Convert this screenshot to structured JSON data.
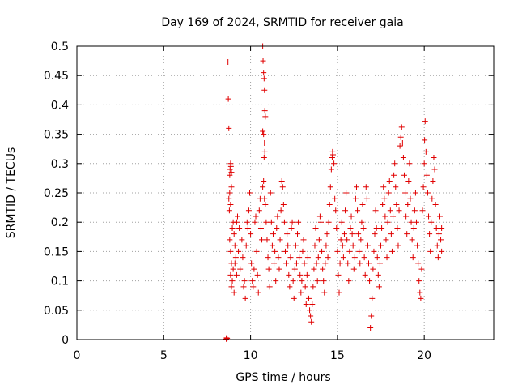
{
  "chart_data": {
    "type": "scatter",
    "title": "Day 169 of 2024, SRMTID for receiver gaia",
    "xlabel": "GPS time / hours",
    "ylabel": "SRMTID / TECUs",
    "xlim": [
      0,
      24
    ],
    "ylim": [
      0,
      0.5
    ],
    "xticks": [
      0,
      5,
      10,
      15,
      20
    ],
    "xtick_labels": [
      "0",
      "5",
      "10",
      "15",
      "20"
    ],
    "yticks": [
      0,
      0.05,
      0.1,
      0.15,
      0.2,
      0.25,
      0.3,
      0.35,
      0.4,
      0.45,
      0.5
    ],
    "ytick_labels": [
      "0",
      "0.05",
      "0.1",
      "0.15",
      "0.2",
      "0.25",
      "0.3",
      "0.35",
      "0.4",
      "0.45",
      "0.5"
    ],
    "grid": true,
    "marker": "+",
    "color": "#e00000",
    "series": [
      {
        "values": [
          [
            8.6,
            0.001
          ],
          [
            8.62,
            0.003
          ],
          [
            8.65,
            0.002
          ],
          [
            8.7,
            0.473
          ],
          [
            8.72,
            0.41
          ],
          [
            8.75,
            0.36
          ],
          [
            8.8,
            0.28
          ],
          [
            8.82,
            0.29
          ],
          [
            8.85,
            0.3
          ],
          [
            8.87,
            0.295
          ],
          [
            8.9,
            0.285
          ],
          [
            8.75,
            0.24
          ],
          [
            8.8,
            0.25
          ],
          [
            8.85,
            0.23
          ],
          [
            8.9,
            0.26
          ],
          [
            8.78,
            0.22
          ],
          [
            8.8,
            0.17
          ],
          [
            8.85,
            0.15
          ],
          [
            8.9,
            0.13
          ],
          [
            8.95,
            0.19
          ],
          [
            9.0,
            0.2
          ],
          [
            9.05,
            0.18
          ],
          [
            9.1,
            0.16
          ],
          [
            9.15,
            0.14
          ],
          [
            9.2,
            0.2
          ],
          [
            9.25,
            0.21
          ],
          [
            8.85,
            0.11
          ],
          [
            8.9,
            0.09
          ],
          [
            8.95,
            0.1
          ],
          [
            9.0,
            0.12
          ],
          [
            9.05,
            0.08
          ],
          [
            9.1,
            0.13
          ],
          [
            9.2,
            0.11
          ],
          [
            9.3,
            0.15
          ],
          [
            9.35,
            0.19
          ],
          [
            9.4,
            0.12
          ],
          [
            9.5,
            0.17
          ],
          [
            9.55,
            0.14
          ],
          [
            9.6,
            0.09
          ],
          [
            9.65,
            0.1
          ],
          [
            9.7,
            0.07
          ],
          [
            9.75,
            0.16
          ],
          [
            9.8,
            0.2
          ],
          [
            9.85,
            0.19
          ],
          [
            9.9,
            0.22
          ],
          [
            9.95,
            0.25
          ],
          [
            10.0,
            0.18
          ],
          [
            10.05,
            0.13
          ],
          [
            10.1,
            0.1
          ],
          [
            10.15,
            0.09
          ],
          [
            10.2,
            0.12
          ],
          [
            10.25,
            0.2
          ],
          [
            10.3,
            0.21
          ],
          [
            10.35,
            0.15
          ],
          [
            10.4,
            0.11
          ],
          [
            10.45,
            0.08
          ],
          [
            10.5,
            0.22
          ],
          [
            10.55,
            0.24
          ],
          [
            10.6,
            0.19
          ],
          [
            10.65,
            0.17
          ],
          [
            10.7,
            0.5
          ],
          [
            10.72,
            0.475
          ],
          [
            10.75,
            0.455
          ],
          [
            10.78,
            0.445
          ],
          [
            10.8,
            0.425
          ],
          [
            10.82,
            0.39
          ],
          [
            10.85,
            0.38
          ],
          [
            10.7,
            0.355
          ],
          [
            10.75,
            0.35
          ],
          [
            10.8,
            0.335
          ],
          [
            10.82,
            0.32
          ],
          [
            10.78,
            0.31
          ],
          [
            10.7,
            0.26
          ],
          [
            10.75,
            0.27
          ],
          [
            10.8,
            0.24
          ],
          [
            10.85,
            0.23
          ],
          [
            10.9,
            0.2
          ],
          [
            10.95,
            0.17
          ],
          [
            11.0,
            0.14
          ],
          [
            11.05,
            0.12
          ],
          [
            11.1,
            0.09
          ],
          [
            11.15,
            0.25
          ],
          [
            11.2,
            0.2
          ],
          [
            11.25,
            0.16
          ],
          [
            11.3,
            0.18
          ],
          [
            11.35,
            0.13
          ],
          [
            11.4,
            0.15
          ],
          [
            11.45,
            0.1
          ],
          [
            11.5,
            0.19
          ],
          [
            11.55,
            0.21
          ],
          [
            11.6,
            0.14
          ],
          [
            11.65,
            0.12
          ],
          [
            11.7,
            0.17
          ],
          [
            11.75,
            0.22
          ],
          [
            11.8,
            0.27
          ],
          [
            11.85,
            0.26
          ],
          [
            11.9,
            0.23
          ],
          [
            11.95,
            0.2
          ],
          [
            12.0,
            0.15
          ],
          [
            12.05,
            0.13
          ],
          [
            12.1,
            0.18
          ],
          [
            12.15,
            0.16
          ],
          [
            12.2,
            0.11
          ],
          [
            12.25,
            0.09
          ],
          [
            12.3,
            0.14
          ],
          [
            12.35,
            0.19
          ],
          [
            12.4,
            0.2
          ],
          [
            12.45,
            0.1
          ],
          [
            12.5,
            0.07
          ],
          [
            12.55,
            0.12
          ],
          [
            12.6,
            0.16
          ],
          [
            12.65,
            0.13
          ],
          [
            12.7,
            0.18
          ],
          [
            12.75,
            0.2
          ],
          [
            12.8,
            0.14
          ],
          [
            12.85,
            0.11
          ],
          [
            12.9,
            0.08
          ],
          [
            12.95,
            0.1
          ],
          [
            13.0,
            0.15
          ],
          [
            13.05,
            0.17
          ],
          [
            13.1,
            0.13
          ],
          [
            13.15,
            0.09
          ],
          [
            13.2,
            0.06
          ],
          [
            13.25,
            0.11
          ],
          [
            13.3,
            0.14
          ],
          [
            13.35,
            0.07
          ],
          [
            13.4,
            0.05
          ],
          [
            13.45,
            0.04
          ],
          [
            13.5,
            0.03
          ],
          [
            13.55,
            0.06
          ],
          [
            13.6,
            0.09
          ],
          [
            13.65,
            0.12
          ],
          [
            13.7,
            0.16
          ],
          [
            13.75,
            0.19
          ],
          [
            13.8,
            0.13
          ],
          [
            13.85,
            0.1
          ],
          [
            13.9,
            0.14
          ],
          [
            13.95,
            0.17
          ],
          [
            14.0,
            0.21
          ],
          [
            14.05,
            0.2
          ],
          [
            14.1,
            0.15
          ],
          [
            14.15,
            0.12
          ],
          [
            14.2,
            0.1
          ],
          [
            14.25,
            0.08
          ],
          [
            14.3,
            0.13
          ],
          [
            14.35,
            0.16
          ],
          [
            14.4,
            0.18
          ],
          [
            14.45,
            0.14
          ],
          [
            14.5,
            0.2
          ],
          [
            14.55,
            0.23
          ],
          [
            14.6,
            0.26
          ],
          [
            14.65,
            0.29
          ],
          [
            14.7,
            0.31
          ],
          [
            14.72,
            0.32
          ],
          [
            14.75,
            0.315
          ],
          [
            14.8,
            0.3
          ],
          [
            14.85,
            0.24
          ],
          [
            14.9,
            0.22
          ],
          [
            14.95,
            0.19
          ],
          [
            15.0,
            0.15
          ],
          [
            15.05,
            0.11
          ],
          [
            15.1,
            0.08
          ],
          [
            15.15,
            0.13
          ],
          [
            15.2,
            0.17
          ],
          [
            15.25,
            0.2
          ],
          [
            15.3,
            0.16
          ],
          [
            15.35,
            0.14
          ],
          [
            15.4,
            0.18
          ],
          [
            15.45,
            0.22
          ],
          [
            15.5,
            0.25
          ],
          [
            15.55,
            0.17
          ],
          [
            15.6,
            0.13
          ],
          [
            15.65,
            0.1
          ],
          [
            15.7,
            0.15
          ],
          [
            15.75,
            0.19
          ],
          [
            15.8,
            0.21
          ],
          [
            15.85,
            0.18
          ],
          [
            15.9,
            0.16
          ],
          [
            15.95,
            0.12
          ],
          [
            16.0,
            0.14
          ],
          [
            16.05,
            0.24
          ],
          [
            16.1,
            0.26
          ],
          [
            16.15,
            0.22
          ],
          [
            16.2,
            0.18
          ],
          [
            16.25,
            0.15
          ],
          [
            16.3,
            0.13
          ],
          [
            16.35,
            0.17
          ],
          [
            16.4,
            0.2
          ],
          [
            16.45,
            0.23
          ],
          [
            16.5,
            0.19
          ],
          [
            16.55,
            0.14
          ],
          [
            16.6,
            0.11
          ],
          [
            16.65,
            0.26
          ],
          [
            16.7,
            0.24
          ],
          [
            16.75,
            0.16
          ],
          [
            16.8,
            0.13
          ],
          [
            16.85,
            0.1
          ],
          [
            16.9,
            0.02
          ],
          [
            16.95,
            0.04
          ],
          [
            17.0,
            0.07
          ],
          [
            17.05,
            0.12
          ],
          [
            17.1,
            0.15
          ],
          [
            17.15,
            0.18
          ],
          [
            17.2,
            0.22
          ],
          [
            17.25,
            0.19
          ],
          [
            17.3,
            0.14
          ],
          [
            17.35,
            0.11
          ],
          [
            17.4,
            0.09
          ],
          [
            17.45,
            0.13
          ],
          [
            17.5,
            0.16
          ],
          [
            17.55,
            0.19
          ],
          [
            17.6,
            0.23
          ],
          [
            17.65,
            0.26
          ],
          [
            17.7,
            0.24
          ],
          [
            17.75,
            0.21
          ],
          [
            17.8,
            0.17
          ],
          [
            17.85,
            0.14
          ],
          [
            17.9,
            0.2
          ],
          [
            17.95,
            0.25
          ],
          [
            18.0,
            0.27
          ],
          [
            18.05,
            0.22
          ],
          [
            18.1,
            0.18
          ],
          [
            18.15,
            0.15
          ],
          [
            18.2,
            0.21
          ],
          [
            18.25,
            0.28
          ],
          [
            18.3,
            0.3
          ],
          [
            18.35,
            0.26
          ],
          [
            18.4,
            0.23
          ],
          [
            18.45,
            0.19
          ],
          [
            18.5,
            0.16
          ],
          [
            18.55,
            0.22
          ],
          [
            18.6,
            0.33
          ],
          [
            18.65,
            0.345
          ],
          [
            18.7,
            0.362
          ],
          [
            18.75,
            0.335
          ],
          [
            18.8,
            0.31
          ],
          [
            18.85,
            0.28
          ],
          [
            18.9,
            0.25
          ],
          [
            18.95,
            0.21
          ],
          [
            19.0,
            0.18
          ],
          [
            19.05,
            0.23
          ],
          [
            19.1,
            0.27
          ],
          [
            19.15,
            0.3
          ],
          [
            19.2,
            0.24
          ],
          [
            19.25,
            0.2
          ],
          [
            19.3,
            0.17
          ],
          [
            19.35,
            0.14
          ],
          [
            19.4,
            0.19
          ],
          [
            19.45,
            0.22
          ],
          [
            19.5,
            0.25
          ],
          [
            19.55,
            0.2
          ],
          [
            19.6,
            0.16
          ],
          [
            19.65,
            0.13
          ],
          [
            19.7,
            0.1
          ],
          [
            19.75,
            0.08
          ],
          [
            19.8,
            0.07
          ],
          [
            19.85,
            0.12
          ],
          [
            19.9,
            0.22
          ],
          [
            19.95,
            0.26
          ],
          [
            20.0,
            0.3
          ],
          [
            20.02,
            0.34
          ],
          [
            20.05,
            0.372
          ],
          [
            20.1,
            0.32
          ],
          [
            20.15,
            0.28
          ],
          [
            20.2,
            0.25
          ],
          [
            20.25,
            0.21
          ],
          [
            20.3,
            0.18
          ],
          [
            20.35,
            0.15
          ],
          [
            20.4,
            0.2
          ],
          [
            20.45,
            0.24
          ],
          [
            20.5,
            0.27
          ],
          [
            20.55,
            0.31
          ],
          [
            20.6,
            0.29
          ],
          [
            20.65,
            0.23
          ],
          [
            20.7,
            0.19
          ],
          [
            20.75,
            0.16
          ],
          [
            20.8,
            0.14
          ],
          [
            20.85,
            0.18
          ],
          [
            20.9,
            0.21
          ],
          [
            20.95,
            0.17
          ],
          [
            21.0,
            0.15
          ],
          [
            21.0,
            0.19
          ]
        ]
      }
    ]
  }
}
